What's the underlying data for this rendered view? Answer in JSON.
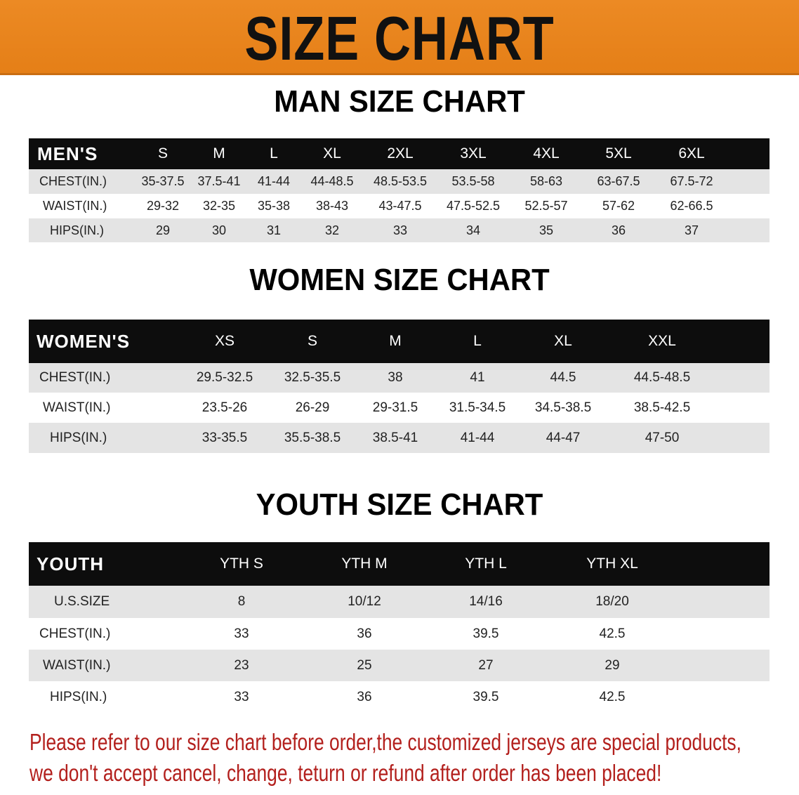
{
  "title": "SIZE CHART",
  "colors": {
    "banner": "#e8821e",
    "header_row": "#0d0d0d",
    "note": "#b3201d"
  },
  "men": {
    "title": "MAN SIZE CHART",
    "header": [
      "MEN'S",
      "S",
      "M",
      "L",
      "XL",
      "2XL",
      "3XL",
      "4XL",
      "5XL",
      "6XL"
    ],
    "rows": [
      [
        "CHEST(IN.)",
        "35-37.5",
        "37.5-41",
        "41-44",
        "44-48.5",
        "48.5-53.5",
        "53.5-58",
        "58-63",
        "63-67.5",
        "67.5-72"
      ],
      [
        "WAIST(IN.)",
        "29-32",
        "32-35",
        "35-38",
        "38-43",
        "43-47.5",
        "47.5-52.5",
        "52.5-57",
        "57-62",
        "62-66.5"
      ],
      [
        "HIPS(IN.)",
        "29",
        "30",
        "31",
        "32",
        "33",
        "34",
        "35",
        "36",
        "37"
      ]
    ]
  },
  "women": {
    "title": "WOMEN SIZE CHART",
    "header": [
      "WOMEN'S",
      "XS",
      "S",
      "M",
      "L",
      "XL",
      "XXL"
    ],
    "rows": [
      [
        "CHEST(IN.)",
        "29.5-32.5",
        "32.5-35.5",
        "38",
        "41",
        "44.5",
        "44.5-48.5"
      ],
      [
        "WAIST(IN.)",
        "23.5-26",
        "26-29",
        "29-31.5",
        "31.5-34.5",
        "34.5-38.5",
        "38.5-42.5"
      ],
      [
        "HIPS(IN.)",
        "33-35.5",
        "35.5-38.5",
        "38.5-41",
        "41-44",
        "44-47",
        "47-50"
      ]
    ]
  },
  "youth": {
    "title": "YOUTH SIZE CHART",
    "header": [
      "YOUTH",
      "YTH S",
      "YTH M",
      "YTH L",
      "YTH XL"
    ],
    "rows": [
      [
        "U.S.SIZE",
        "8",
        "10/12",
        "14/16",
        "18/20"
      ],
      [
        "CHEST(IN.)",
        "33",
        "36",
        "39.5",
        "42.5"
      ],
      [
        "WAIST(IN.)",
        "23",
        "25",
        "27",
        "29"
      ],
      [
        "HIPS(IN.)",
        "33",
        "36",
        "39.5",
        "42.5"
      ]
    ]
  },
  "note": {
    "line1": "Please refer to our size chart before order,the customized jerseys are special products,",
    "line2": "we don't accept cancel, change, teturn or refund after order has been placed!"
  }
}
